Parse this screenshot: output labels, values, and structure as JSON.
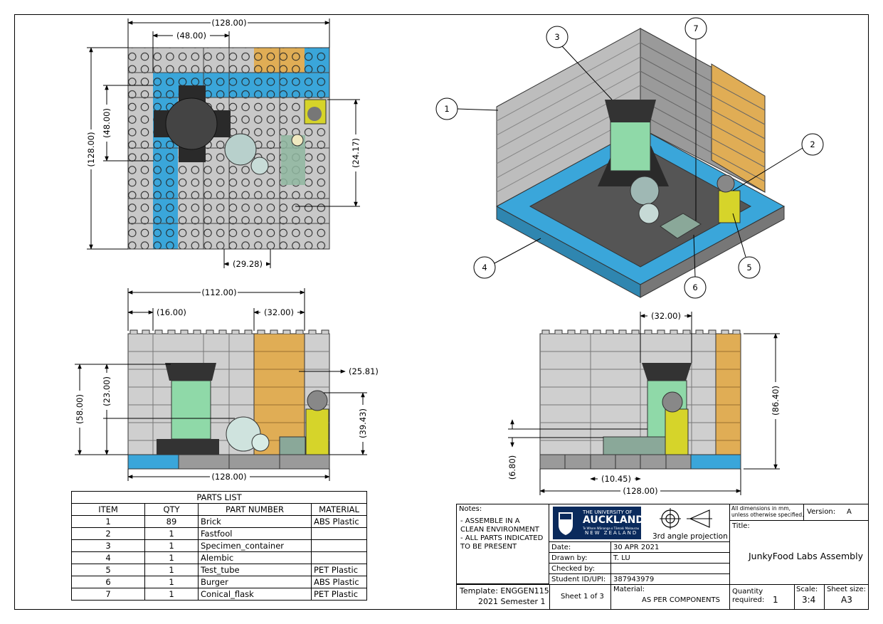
{
  "views": {
    "top_dims": [
      "(128.00)",
      "(48.00)",
      "(48.00)",
      "(128.00)",
      "(24.17)",
      "(29.28)"
    ],
    "front_dims": [
      "(112.00)",
      "(16.00)",
      "(32.00)",
      "(25.81)",
      "(58.00)",
      "(23.00)",
      "(39.43)",
      "(128.00)"
    ],
    "side_dims": [
      "(32.00)",
      "(86.40)",
      "(6.80)",
      "(10.45)",
      "(128.00)"
    ],
    "balloons": [
      "1",
      "2",
      "3",
      "4",
      "5",
      "6",
      "7"
    ]
  },
  "parts_list": {
    "title": "PARTS LIST",
    "headers": [
      "ITEM",
      "QTY",
      "PART NUMBER",
      "MATERIAL"
    ],
    "rows": [
      [
        "1",
        "89",
        "Brick",
        "ABS Plastic"
      ],
      [
        "2",
        "1",
        "Fastfool",
        ""
      ],
      [
        "3",
        "1",
        "Specimen_container",
        ""
      ],
      [
        "4",
        "1",
        "Alembic",
        ""
      ],
      [
        "5",
        "1",
        "Test_tube",
        "PET Plastic"
      ],
      [
        "6",
        "1",
        "Burger",
        "ABS Plastic"
      ],
      [
        "7",
        "1",
        "Conical_flask",
        "PET Plastic"
      ]
    ]
  },
  "title_block": {
    "notes_label": "Notes:",
    "notes": [
      "- ASSEMBLE IN A",
      "CLEAN ENVIRONMENT",
      "- ALL PARTS INDICATED",
      "TO BE PRESENT"
    ],
    "logo_line1": "THE UNIVERSITY OF",
    "logo_line2": "AUCKLAND",
    "logo_line3": "Te Whare Wānanga o Tāmaki Makaurau",
    "logo_line4": "NEW ZEALAND",
    "projection": "3rd angle projection",
    "dims_note1": "All dimensions in mm,",
    "dims_note2": "unless otherwise specified.",
    "version_label": "Version:",
    "version": "A",
    "title_label": "Title:",
    "title": "JunkyFood Labs Assembly",
    "date_label": "Date:",
    "date": "30 APR 2021",
    "drawn_label": "Drawn by:",
    "drawn": "T. LU",
    "checked_label": "Checked by:",
    "checked": "",
    "student_label": "Student ID/UPI:",
    "student": "387943979",
    "template_label": "Template: ENGGEN115",
    "template_sem": "2021 Semester 1",
    "sheet": "Sheet 1 of 3",
    "material_label": "Material:",
    "material": "AS PER COMPONENTS",
    "quantity_label1": "Quantity",
    "quantity_label2": "required:",
    "quantity": "1",
    "scale_label": "Scale:",
    "scale": "3:4",
    "sheet_size_label": "Sheet size:",
    "sheet_size": "A3"
  },
  "colors": {
    "grey": "#c8c8c8",
    "dark": "#555555",
    "blue": "#3aa6da",
    "gold": "#e0ad55",
    "glass": "#8fd9a8",
    "yellow": "#d6d42a"
  }
}
